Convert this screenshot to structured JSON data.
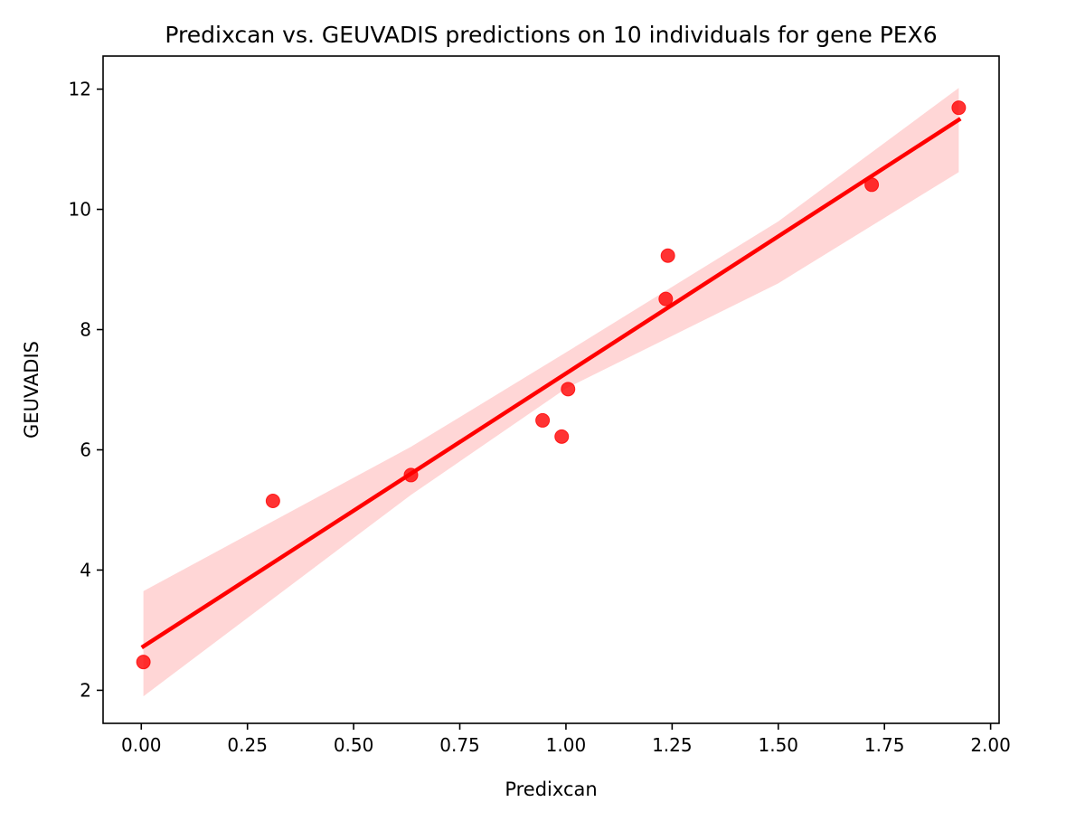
{
  "chart_data": {
    "type": "scatter",
    "title": "Predixcan vs. GEUVADIS predictions on 10 individuals for gene PEX6",
    "xlabel": "Predixcan",
    "ylabel": "GEUVADIS",
    "xlim": [
      -0.09,
      2.02
    ],
    "ylim": [
      1.45,
      12.55
    ],
    "x_ticks": [
      0.0,
      0.25,
      0.5,
      0.75,
      1.0,
      1.25,
      1.5,
      1.75,
      2.0
    ],
    "x_tick_labels": [
      "0.00",
      "0.25",
      "0.50",
      "0.75",
      "1.00",
      "1.25",
      "1.50",
      "1.75",
      "2.00"
    ],
    "y_ticks": [
      2,
      4,
      6,
      8,
      10,
      12
    ],
    "y_tick_labels": [
      "2",
      "4",
      "6",
      "8",
      "10",
      "12"
    ],
    "grid": false,
    "legend": "none",
    "point_color": "#ff0000",
    "band_color": "#ffd6d6",
    "points": [
      {
        "x": 0.005,
        "y": 2.47
      },
      {
        "x": 0.31,
        "y": 5.15
      },
      {
        "x": 0.635,
        "y": 5.58
      },
      {
        "x": 0.945,
        "y": 6.49
      },
      {
        "x": 0.99,
        "y": 6.22
      },
      {
        "x": 1.005,
        "y": 7.01
      },
      {
        "x": 1.235,
        "y": 8.51
      },
      {
        "x": 1.24,
        "y": 9.23
      },
      {
        "x": 1.72,
        "y": 10.41
      },
      {
        "x": 1.925,
        "y": 11.69
      }
    ],
    "regression": {
      "x": [
        0.005,
        1.925
      ],
      "y": [
        2.73,
        11.49
      ],
      "ci_upper": [
        {
          "x": 0.005,
          "y": 3.65
        },
        {
          "x": 0.635,
          "y": 6.05
        },
        {
          "x": 1.0,
          "y": 7.62
        },
        {
          "x": 1.5,
          "y": 9.8
        },
        {
          "x": 1.925,
          "y": 12.02
        }
      ],
      "ci_lower": [
        {
          "x": 0.005,
          "y": 1.9
        },
        {
          "x": 0.635,
          "y": 5.25
        },
        {
          "x": 1.0,
          "y": 7.02
        },
        {
          "x": 1.5,
          "y": 8.77
        },
        {
          "x": 1.925,
          "y": 10.62
        }
      ]
    }
  }
}
